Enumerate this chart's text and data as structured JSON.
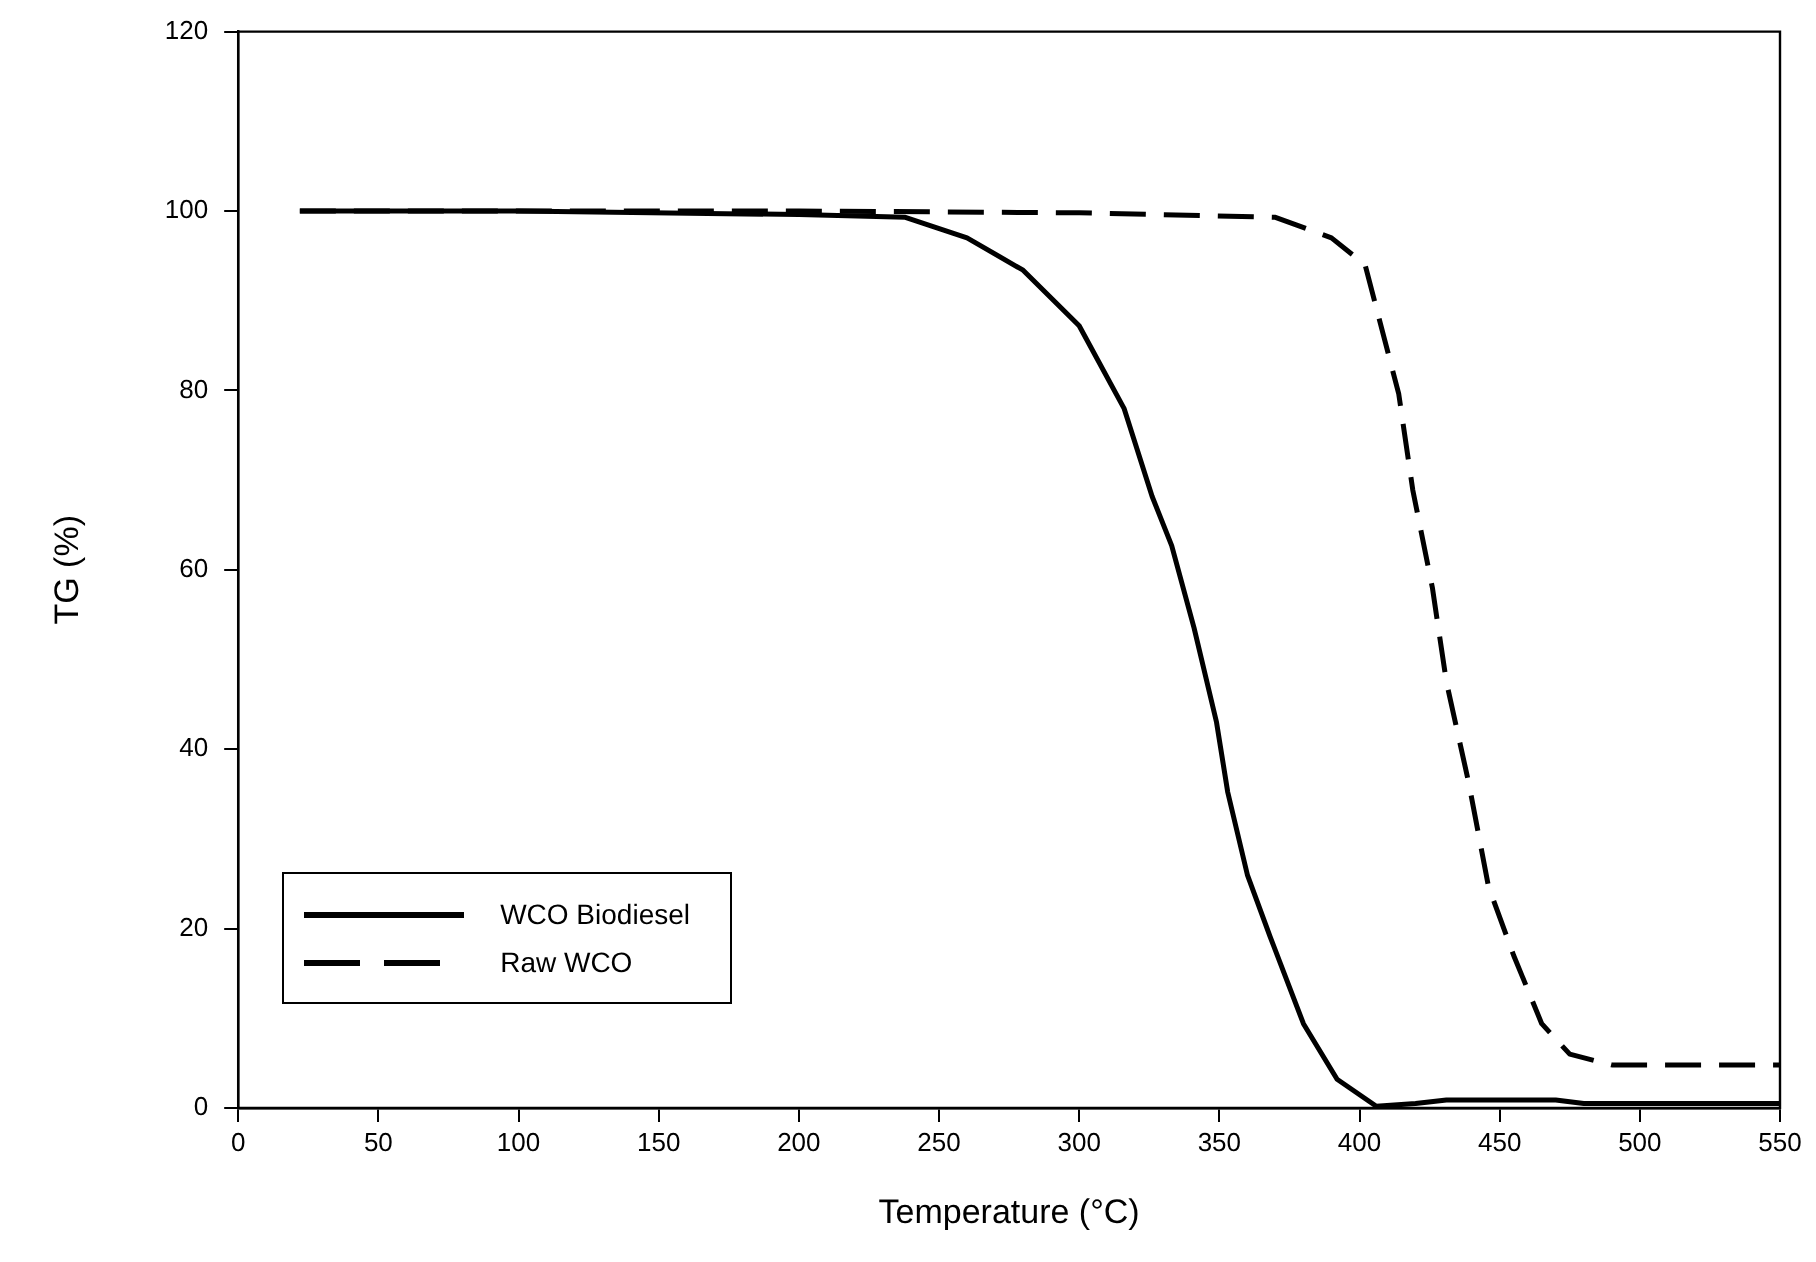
{
  "chart_data": {
    "type": "line",
    "xlabel": "Temperature (°C)",
    "ylabel": "TG (%)",
    "xlim": [
      0,
      550
    ],
    "ylim": [
      0,
      120
    ],
    "xticks": [
      0,
      50,
      100,
      150,
      200,
      250,
      300,
      350,
      400,
      450,
      500,
      550
    ],
    "yticks": [
      0,
      20,
      40,
      60,
      80,
      100,
      120
    ],
    "grid": false,
    "legend": "bottom left",
    "marker": "none",
    "series": [
      {
        "name": "WCO Biodiesel",
        "color": "#000000",
        "line_style": "solid",
        "x": [
          22,
          100,
          200,
          238,
          260,
          280,
          300,
          316,
          326,
          333,
          341,
          349,
          353,
          360,
          368,
          380,
          392,
          406,
          420,
          431,
          470,
          480,
          550
        ],
        "values": [
          100,
          100,
          99.6,
          99.3,
          97,
          93.4,
          87.2,
          78,
          68.2,
          62.7,
          53.5,
          43,
          35.2,
          26,
          19.2,
          9.4,
          3.2,
          0.2,
          0.5,
          0.9,
          0.9,
          0.5,
          0.5
        ]
      },
      {
        "name": "Raw WCO",
        "color": "#000000",
        "line_style": "dashed",
        "x": [
          22,
          100,
          200,
          300,
          370,
          390,
          402,
          409,
          414,
          419,
          426,
          431,
          439,
          446,
          455,
          465,
          475,
          490,
          550
        ],
        "values": [
          100,
          100,
          100,
          99.8,
          99.3,
          97,
          94,
          85.6,
          79.6,
          68.9,
          58,
          47.5,
          36.2,
          24.7,
          17,
          9.4,
          6,
          4.8,
          4.8
        ]
      }
    ]
  }
}
